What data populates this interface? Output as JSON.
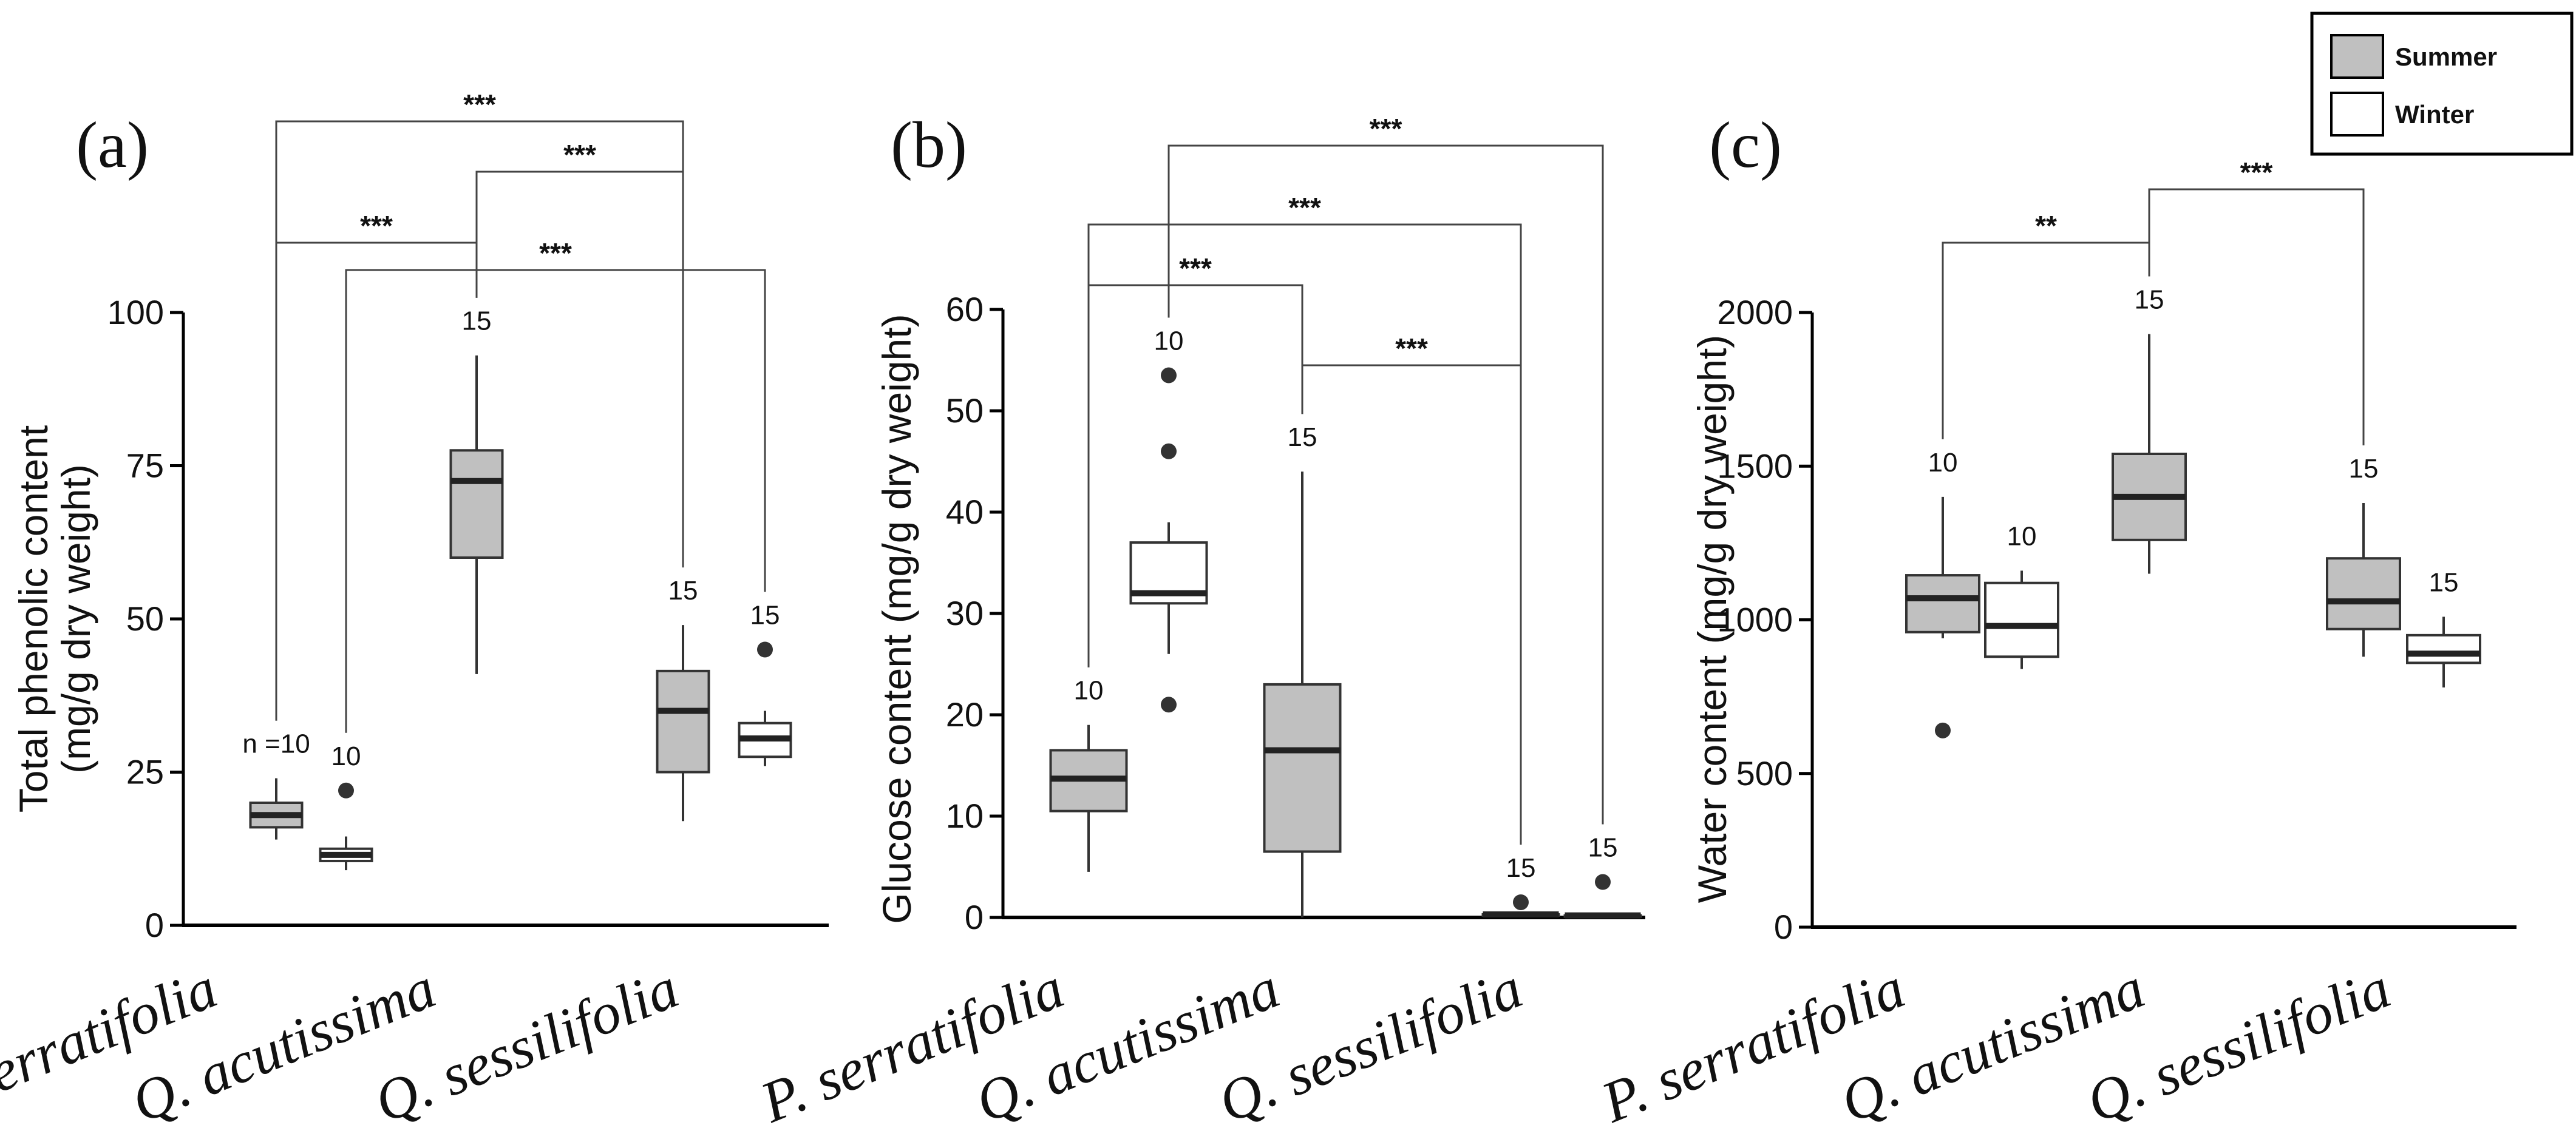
{
  "legend": [
    {
      "label": "Summer",
      "color": "#c0c0c0"
    },
    {
      "label": "Winter",
      "color": "#ffffff"
    }
  ],
  "colors": {
    "summer": "#c0c0c0",
    "winter": "#ffffff",
    "stroke": "#333333"
  },
  "chart_data": [
    {
      "type": "boxplot",
      "panel_label": "(a)",
      "ylabel_line1": "Total phenolic content",
      "ylabel_line2": "(mg/g dry weight)",
      "ylim": [
        0,
        100
      ],
      "yticks": [
        "0",
        "25",
        "50",
        "75",
        "100"
      ],
      "ytick_values": [
        0,
        25,
        50,
        75,
        100
      ],
      "categories": [
        "P. serratifolia",
        "Q. acutissima",
        "Q. sessilifolia"
      ],
      "boxes": [
        {
          "category": "P. serratifolia",
          "season": "Summer",
          "min": 14,
          "q1": 16,
          "median": 18,
          "q3": 20,
          "max": 24,
          "outliers": [],
          "n_label": "n =10"
        },
        {
          "category": "P. serratifolia",
          "season": "Winter",
          "min": 9,
          "q1": 10.5,
          "median": 11.5,
          "q3": 12.5,
          "max": 14.5,
          "outliers": [
            22
          ],
          "n_label": "10"
        },
        {
          "category": "Q. acutissima",
          "season": "Summer",
          "min": 41,
          "q1": 60,
          "median": 72.5,
          "q3": 77.5,
          "max": 93,
          "outliers": [],
          "n_label": "15"
        },
        {
          "category": "Q. sessilifolia",
          "season": "Summer",
          "min": 17,
          "q1": 25,
          "median": 35,
          "q3": 41.5,
          "max": 49,
          "outliers": [],
          "n_label": "15"
        },
        {
          "category": "Q. sessilifolia",
          "season": "Winter",
          "min": 26,
          "q1": 27.5,
          "median": 30.5,
          "q3": 33,
          "max": 35,
          "outliers": [
            45
          ],
          "n_label": "15"
        }
      ],
      "significance": [
        {
          "from": 0,
          "to": 3,
          "label": "***",
          "level": 1
        },
        {
          "from": 2,
          "to": 3,
          "label": "***",
          "level": 2
        },
        {
          "from": 0,
          "to": 2,
          "label": "***",
          "level": 3
        },
        {
          "from": 1,
          "to": 4,
          "label": "***",
          "level": 4
        }
      ]
    },
    {
      "type": "boxplot",
      "panel_label": "(b)",
      "ylabel_line1": "Glucose content (mg/g dry weight)",
      "ylabel_line2": "",
      "ylim": [
        0,
        60
      ],
      "yticks": [
        "0",
        "10",
        "20",
        "30",
        "40",
        "50",
        "60"
      ],
      "ytick_values": [
        0,
        10,
        20,
        30,
        40,
        50,
        60
      ],
      "categories": [
        "P. serratifolia",
        "Q. acutissima",
        "Q. sessilifolia"
      ],
      "boxes": [
        {
          "category": "P. serratifolia",
          "season": "Summer",
          "min": 4.5,
          "q1": 10.5,
          "median": 13.7,
          "q3": 16.5,
          "max": 19,
          "outliers": [],
          "n_label": "10"
        },
        {
          "category": "P. serratifolia",
          "season": "Winter",
          "min": 26,
          "q1": 31,
          "median": 32,
          "q3": 37,
          "max": 39,
          "outliers": [
            53.5,
            46,
            21
          ],
          "n_label": "10"
        },
        {
          "category": "Q. acutissima",
          "season": "Summer",
          "min": 0,
          "q1": 6.5,
          "median": 16.5,
          "q3": 23,
          "max": 44,
          "outliers": [],
          "n_label": "15"
        },
        {
          "category": "Q. sessilifolia",
          "season": "Summer",
          "min": 0.3,
          "q1": 0.3,
          "median": 0.3,
          "q3": 0.3,
          "max": 0.3,
          "outliers": [
            1.5
          ],
          "n_label": "15"
        },
        {
          "category": "Q. sessilifolia",
          "season": "Winter",
          "min": 0.2,
          "q1": 0.2,
          "median": 0.2,
          "q3": 0.2,
          "max": 0.2,
          "outliers": [
            3.5
          ],
          "n_label": "15"
        }
      ],
      "significance": [
        {
          "from": 1,
          "to": 4,
          "label": "***",
          "level": 1
        },
        {
          "from": 0,
          "to": 3,
          "label": "***",
          "level": 2
        },
        {
          "from": 0,
          "to": 2,
          "label": "***",
          "level": 3
        },
        {
          "from": 2,
          "to": 3,
          "label": "***",
          "level": 4
        }
      ]
    },
    {
      "type": "boxplot",
      "panel_label": "(c)",
      "ylabel_line1": "Water content (mg/g dry weight)",
      "ylabel_line2": "",
      "ylim": [
        0,
        2000
      ],
      "yticks": [
        "0",
        "500",
        "1000",
        "1500",
        "2000"
      ],
      "ytick_values": [
        0,
        500,
        1000,
        1500,
        2000
      ],
      "categories": [
        "P. serratifolia",
        "Q. acutissima",
        "Q. sessilifolia"
      ],
      "boxes": [
        {
          "category": "P. serratifolia",
          "season": "Summer",
          "min": 940,
          "q1": 960,
          "median": 1070,
          "q3": 1145,
          "max": 1400,
          "outliers": [
            640
          ],
          "n_label": "10"
        },
        {
          "category": "P. serratifolia",
          "season": "Winter",
          "min": 840,
          "q1": 880,
          "median": 980,
          "q3": 1120,
          "max": 1160,
          "outliers": [],
          "n_label": "10"
        },
        {
          "category": "Q. acutissima",
          "season": "Summer",
          "min": 1150,
          "q1": 1260,
          "median": 1400,
          "q3": 1540,
          "max": 1930,
          "outliers": [],
          "n_label": "15"
        },
        {
          "category": "Q. sessilifolia",
          "season": "Summer",
          "min": 880,
          "q1": 970,
          "median": 1060,
          "q3": 1200,
          "max": 1380,
          "outliers": [],
          "n_label": "15"
        },
        {
          "category": "Q. sessilifolia",
          "season": "Winter",
          "min": 780,
          "q1": 860,
          "median": 890,
          "q3": 950,
          "max": 1010,
          "outliers": [],
          "n_label": "15"
        }
      ],
      "significance": [
        {
          "from": 0,
          "to": 2,
          "label": "**",
          "level": 1
        },
        {
          "from": 2,
          "to": 3,
          "label": "***",
          "level": 2
        }
      ]
    }
  ]
}
